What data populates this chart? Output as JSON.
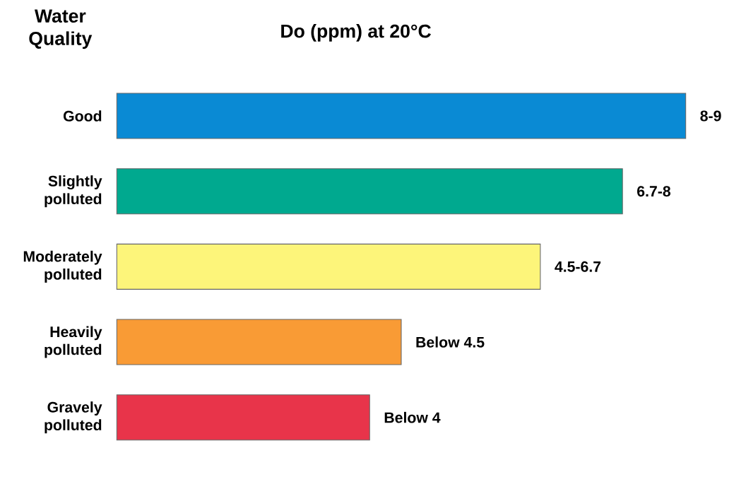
{
  "chart_data": {
    "type": "bar",
    "orientation": "horizontal",
    "tick_labels": "y",
    "title": "Do (ppm) at 20°C",
    "ylabel": "Water Quality",
    "categories": [
      "Good",
      "Slightly polluted",
      "Moderately polluted",
      "Heavily polluted",
      "Gravely polluted"
    ],
    "values": [
      9,
      8,
      6.7,
      4.5,
      4
    ],
    "colors": [
      "#0a8ad4",
      "#00a98f",
      "#fdf57a",
      "#f99b35",
      "#e8344a"
    ],
    "value_labels": [
      "8-9",
      "6.7-8",
      "4.5-6.7",
      "Below 4.5",
      "Below 4"
    ]
  }
}
